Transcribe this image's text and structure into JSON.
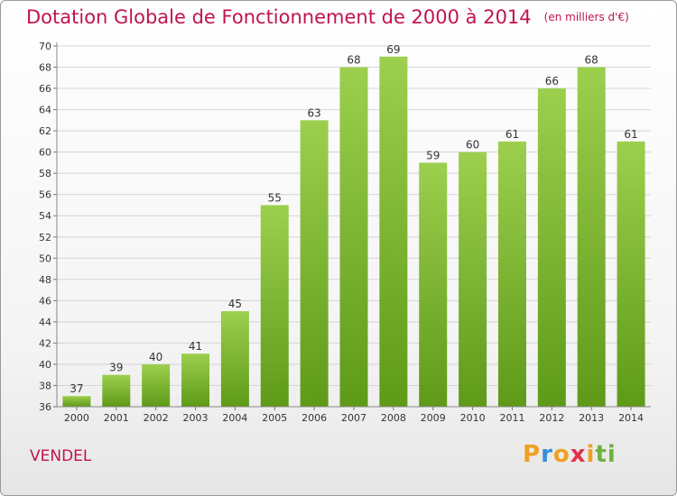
{
  "header": {
    "title": "Dotation Globale de Fonctionnement de 2000 à 2014",
    "unit": "(en milliers d'€)"
  },
  "footer": {
    "commune": "VENDEL",
    "logo_letters": [
      "P",
      "r",
      "o",
      "x",
      "i",
      "t",
      "i"
    ],
    "logo_colors": [
      "#f0a020",
      "#3a8fd8",
      "#f0a020",
      "#e2304a",
      "#f0a020",
      "#6cb33e",
      "#6cb33e"
    ]
  },
  "chart_data": {
    "type": "bar",
    "categories": [
      "2000",
      "2001",
      "2002",
      "2003",
      "2004",
      "2005",
      "2006",
      "2007",
      "2008",
      "2009",
      "2010",
      "2011",
      "2012",
      "2013",
      "2014"
    ],
    "values": [
      37,
      39,
      40,
      41,
      45,
      55,
      63,
      68,
      69,
      59,
      60,
      61,
      66,
      68,
      61
    ],
    "ylim": [
      36,
      70
    ],
    "yticks": [
      36,
      38,
      40,
      42,
      44,
      46,
      48,
      50,
      52,
      54,
      56,
      58,
      60,
      62,
      64,
      66,
      68,
      70
    ],
    "grid": true,
    "bar_color": "#7ab82e"
  }
}
